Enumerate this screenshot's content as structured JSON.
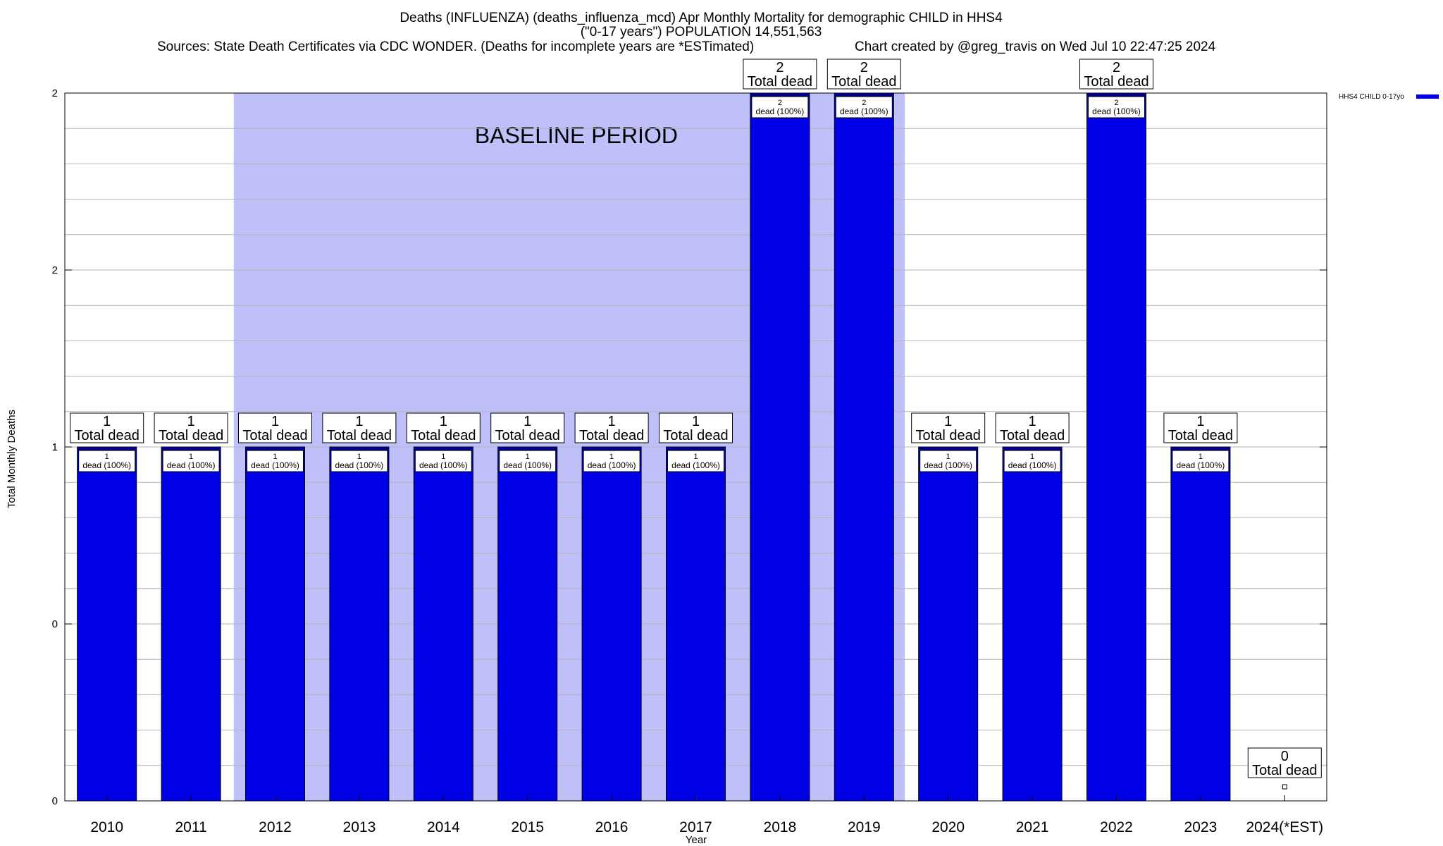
{
  "chart_data": {
    "type": "bar",
    "title_lines": [
      "Deaths (INFLUENZA) (deaths_influenza_mcd) Apr Monthly Mortality for demographic CHILD in HHS4",
      "(\"0-17 years\") POPULATION 14,551,563"
    ],
    "sources": "Sources: State Death Certificates via CDC WONDER. (Deaths for incomplete years are *ESTimated)",
    "credit": "Chart created by @greg_travis on Wed Jul 10 22:47:25 2024",
    "xlabel": "Year",
    "ylabel": "Total Monthly Deaths",
    "ylim": [
      0,
      2
    ],
    "y_tick_values": [
      0,
      0.5,
      1,
      1.5,
      2
    ],
    "y_tick_labels": [
      "0",
      "0",
      "1",
      "2",
      "2"
    ],
    "grid": true,
    "categories": [
      "2010",
      "2011",
      "2012",
      "2013",
      "2014",
      "2015",
      "2016",
      "2017",
      "2018",
      "2019",
      "2020",
      "2021",
      "2022",
      "2023",
      "2024(*EST)"
    ],
    "series": [
      {
        "name": "HHS4 CHILD 0-17yo",
        "color": "#0000e6",
        "values": [
          1,
          1,
          1,
          1,
          1,
          1,
          1,
          1,
          2,
          2,
          1,
          1,
          2,
          1,
          0
        ]
      }
    ],
    "total_labels": [
      {
        "value": "1",
        "text": "Total dead"
      },
      {
        "value": "1",
        "text": "Total dead"
      },
      {
        "value": "1",
        "text": "Total dead"
      },
      {
        "value": "1",
        "text": "Total dead"
      },
      {
        "value": "1",
        "text": "Total dead"
      },
      {
        "value": "1",
        "text": "Total dead"
      },
      {
        "value": "1",
        "text": "Total dead"
      },
      {
        "value": "1",
        "text": "Total dead"
      },
      {
        "value": "2",
        "text": "Total dead"
      },
      {
        "value": "2",
        "text": "Total dead"
      },
      {
        "value": "1",
        "text": "Total dead"
      },
      {
        "value": "1",
        "text": "Total dead"
      },
      {
        "value": "2",
        "text": "Total dead"
      },
      {
        "value": "1",
        "text": "Total dead"
      },
      {
        "value": "0",
        "text": "Total dead"
      }
    ],
    "segment_labels": [
      {
        "value": "1",
        "text": "dead (100%)"
      },
      {
        "value": "1",
        "text": "dead (100%)"
      },
      {
        "value": "1",
        "text": "dead (100%)"
      },
      {
        "value": "1",
        "text": "dead (100%)"
      },
      {
        "value": "1",
        "text": "dead (100%)"
      },
      {
        "value": "1",
        "text": "dead (100%)"
      },
      {
        "value": "1",
        "text": "dead (100%)"
      },
      {
        "value": "1",
        "text": "dead (100%)"
      },
      {
        "value": "2",
        "text": "dead (100%)"
      },
      {
        "value": "2",
        "text": "dead (100%)"
      },
      {
        "value": "1",
        "text": "dead (100%)"
      },
      {
        "value": "1",
        "text": "dead (100%)"
      },
      {
        "value": "2",
        "text": "dead (100%)"
      },
      {
        "value": "1",
        "text": "dead (100%)"
      },
      null
    ],
    "baseline": {
      "label": "BASELINE PERIOD",
      "start": "2012",
      "end": "2019",
      "color": "#bfbffa"
    },
    "legend": {
      "position": "top-right",
      "label": "HHS4 CHILD 0-17yo"
    }
  }
}
